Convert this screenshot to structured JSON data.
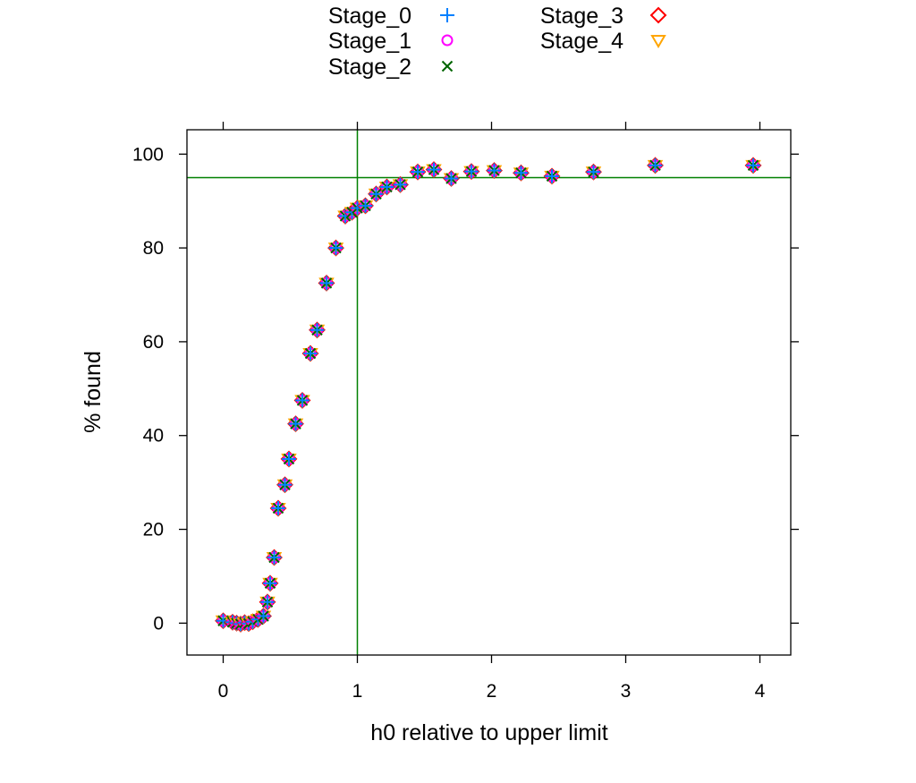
{
  "chart_data": {
    "type": "scatter",
    "title": "",
    "xlabel": "h0 relative to upper limit",
    "ylabel": "% found",
    "xlim": [
      -0.27,
      4.23
    ],
    "ylim": [
      -6.8,
      105.2
    ],
    "xticks": [
      0,
      1,
      2,
      3,
      4
    ],
    "xtick_labels": [
      "0",
      "1",
      "2",
      "3",
      "4"
    ],
    "yticks": [
      0,
      20,
      40,
      60,
      80,
      100
    ],
    "ytick_labels": [
      "0",
      "20",
      "40",
      "60",
      "80",
      "100"
    ],
    "grid": false,
    "legend_position": "top",
    "reference_lines": {
      "vertical_x": 1,
      "horizontal_y": 95,
      "color": "#008000"
    },
    "series": [
      {
        "name": "Stage_0",
        "marker": "plus",
        "color": "#0080ff"
      },
      {
        "name": "Stage_1",
        "marker": "circle",
        "color": "#ff00ff"
      },
      {
        "name": "Stage_2",
        "marker": "cross",
        "color": "#006400"
      },
      {
        "name": "Stage_3",
        "marker": "diamond",
        "color": "#ff0000"
      },
      {
        "name": "Stage_4",
        "marker": "triangle-down",
        "color": "#ffa500"
      }
    ],
    "points": [
      {
        "x": 0.0,
        "y": 0.5
      },
      {
        "x": 0.07,
        "y": 0.2
      },
      {
        "x": 0.1,
        "y": 0.0
      },
      {
        "x": 0.13,
        "y": -0.2
      },
      {
        "x": 0.16,
        "y": 0.1
      },
      {
        "x": 0.19,
        "y": -0.1
      },
      {
        "x": 0.22,
        "y": 0.3
      },
      {
        "x": 0.26,
        "y": 0.8
      },
      {
        "x": 0.3,
        "y": 1.5
      },
      {
        "x": 0.33,
        "y": 4.5
      },
      {
        "x": 0.35,
        "y": 8.5
      },
      {
        "x": 0.38,
        "y": 14.0
      },
      {
        "x": 0.41,
        "y": 24.5
      },
      {
        "x": 0.46,
        "y": 29.5
      },
      {
        "x": 0.49,
        "y": 35.0
      },
      {
        "x": 0.54,
        "y": 42.5
      },
      {
        "x": 0.59,
        "y": 47.5
      },
      {
        "x": 0.65,
        "y": 57.5
      },
      {
        "x": 0.7,
        "y": 62.5
      },
      {
        "x": 0.77,
        "y": 72.5
      },
      {
        "x": 0.84,
        "y": 80.0
      },
      {
        "x": 0.91,
        "y": 86.8
      },
      {
        "x": 0.96,
        "y": 87.6
      },
      {
        "x": 1.0,
        "y": 88.5
      },
      {
        "x": 1.06,
        "y": 89.0
      },
      {
        "x": 1.14,
        "y": 91.5
      },
      {
        "x": 1.22,
        "y": 93.0
      },
      {
        "x": 1.32,
        "y": 93.5
      },
      {
        "x": 1.45,
        "y": 96.2
      },
      {
        "x": 1.57,
        "y": 96.7
      },
      {
        "x": 1.7,
        "y": 94.8
      },
      {
        "x": 1.85,
        "y": 96.3
      },
      {
        "x": 2.02,
        "y": 96.5
      },
      {
        "x": 2.22,
        "y": 96.0
      },
      {
        "x": 2.45,
        "y": 95.3
      },
      {
        "x": 2.76,
        "y": 96.2
      },
      {
        "x": 3.22,
        "y": 97.6
      },
      {
        "x": 3.95,
        "y": 97.6
      }
    ]
  }
}
